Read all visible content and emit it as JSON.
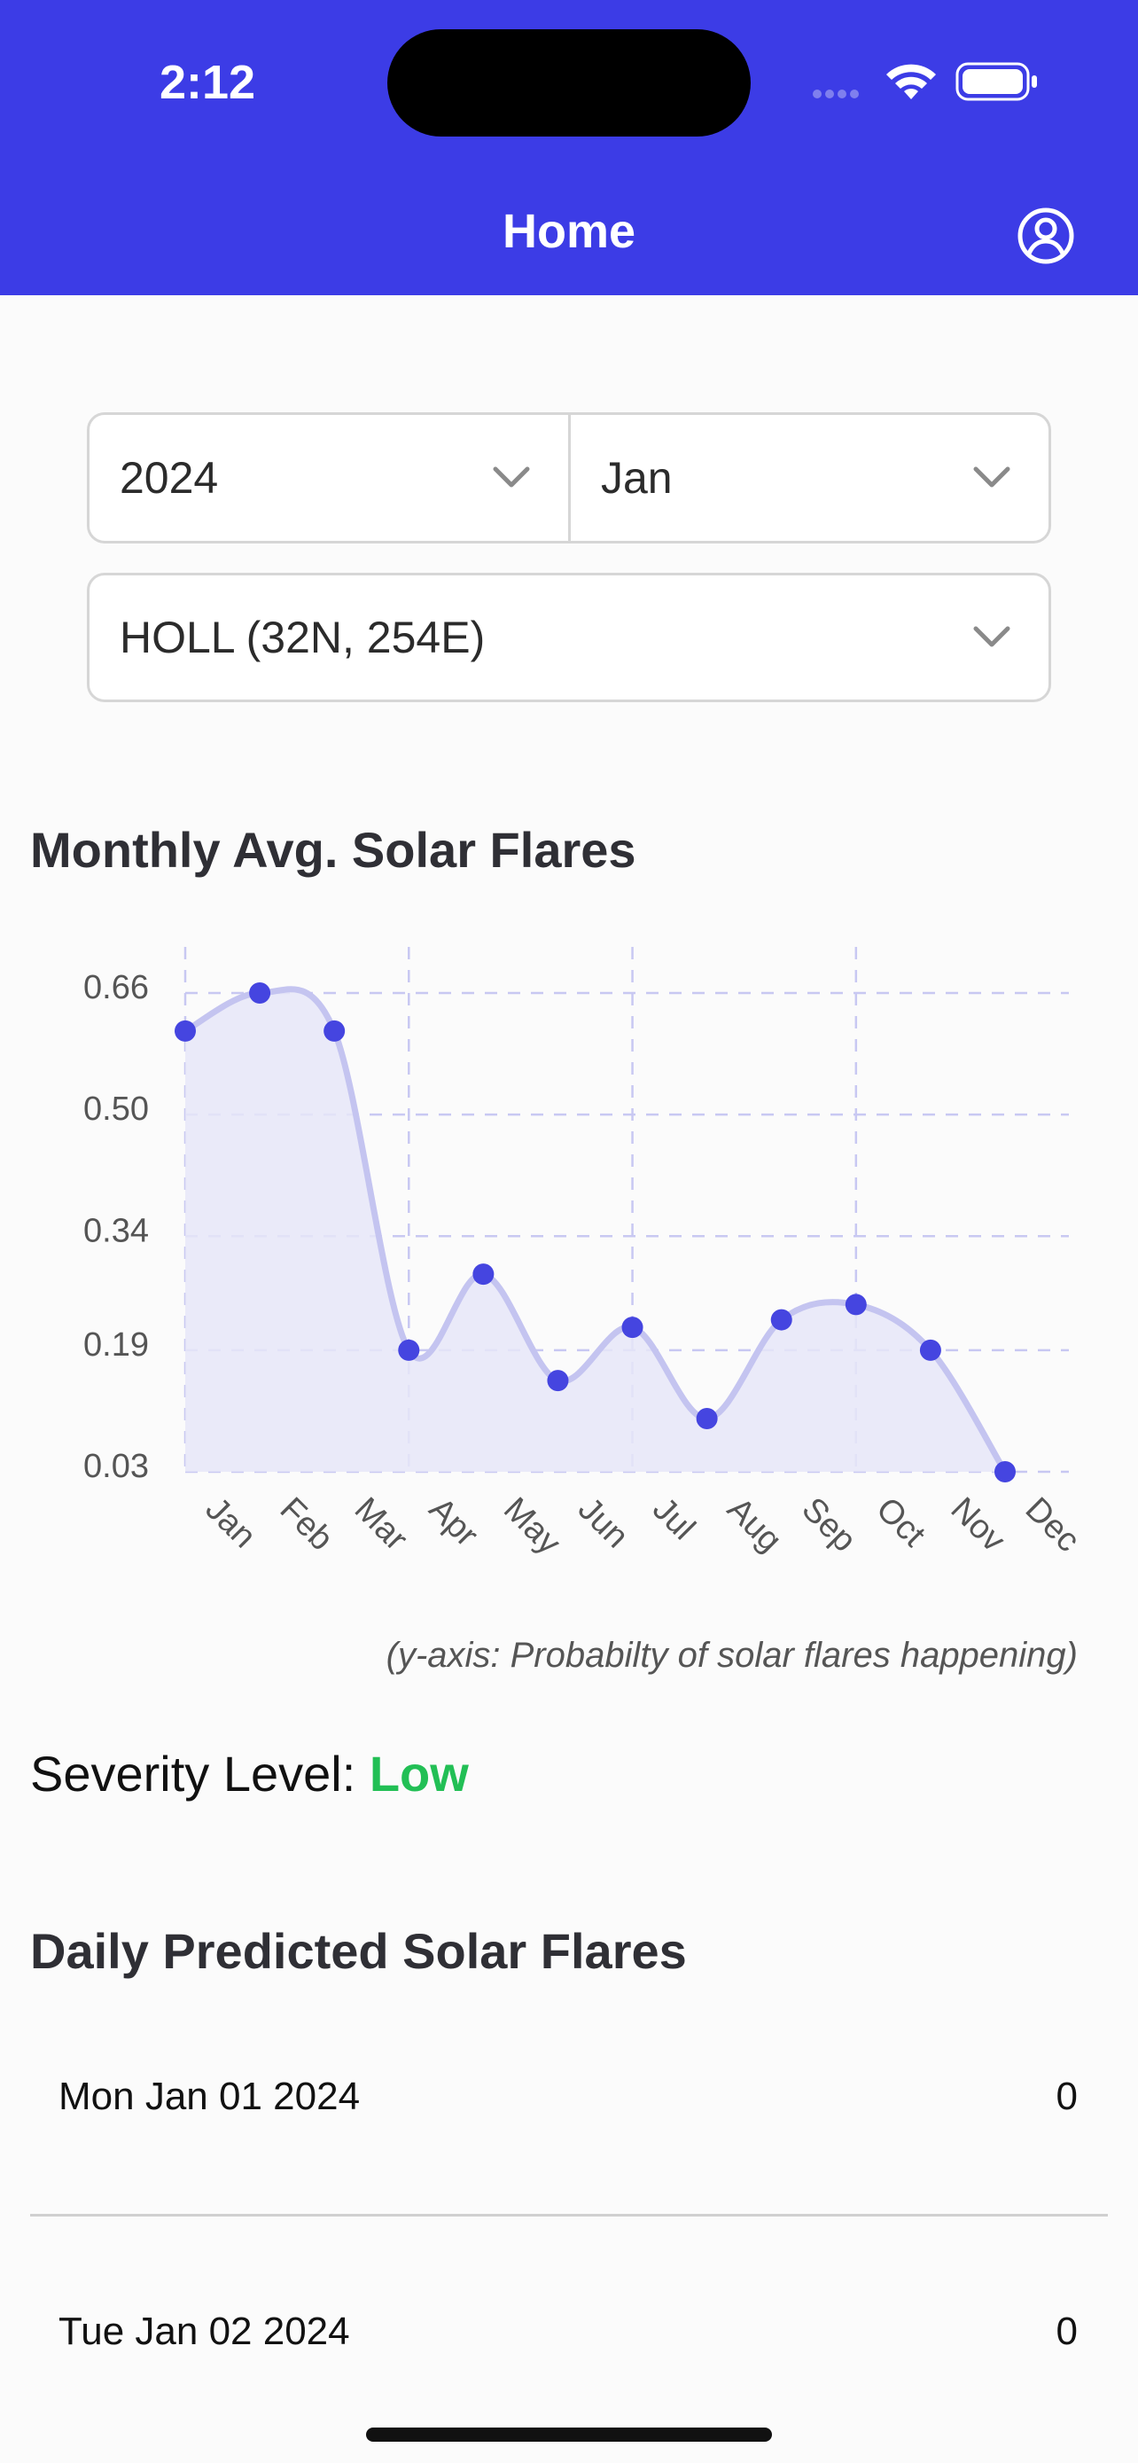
{
  "status_bar": {
    "time": "2:12"
  },
  "nav": {
    "title": "Home",
    "profile_icon": "person-circle-icon"
  },
  "filters": {
    "year": "2024",
    "month": "Jan",
    "station": "HOLL (32N, 254E)"
  },
  "monthly": {
    "title": "Monthly Avg. Solar Flares",
    "caption": "(y-axis: Probabilty of solar flares happening)"
  },
  "chart_data": {
    "type": "area",
    "categories": [
      "Jan",
      "Feb",
      "Mar",
      "Apr",
      "May",
      "Jun",
      "Jul",
      "Aug",
      "Sep",
      "Oct",
      "Nov",
      "Dec"
    ],
    "values": [
      0.61,
      0.66,
      0.61,
      0.19,
      0.29,
      0.15,
      0.22,
      0.1,
      0.23,
      0.25,
      0.19,
      0.03
    ],
    "y_ticks": [
      "0.03",
      "0.19",
      "0.34",
      "0.50",
      "0.66"
    ],
    "ylim": [
      0.03,
      0.66
    ],
    "grid": true,
    "colors": {
      "line": "#c4c4f0",
      "fill": "#e6e6f8",
      "point": "#4545e0",
      "grid": "#c8c8f2"
    }
  },
  "severity": {
    "label": "Severity Level:",
    "value": "Low"
  },
  "daily": {
    "title": "Daily Predicted Solar Flares",
    "rows": [
      {
        "date": "Mon Jan 01 2024",
        "count": "0"
      },
      {
        "date": "Tue Jan 02 2024",
        "count": "0"
      }
    ]
  }
}
